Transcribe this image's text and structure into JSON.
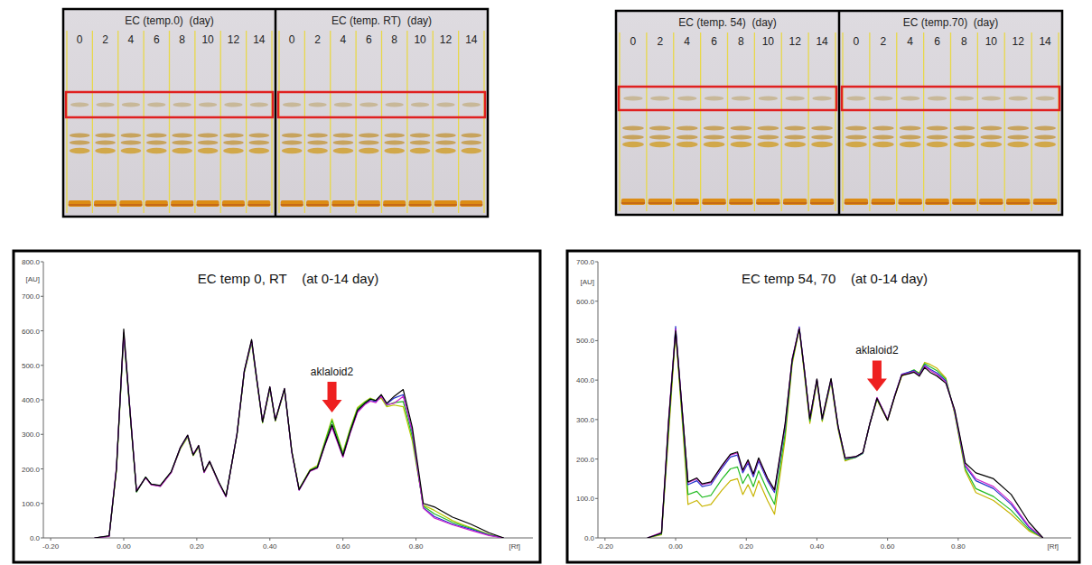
{
  "plates": [
    {
      "panels": [
        {
          "title": "EC (temp.0)  (day)",
          "lanes": [
            0,
            2,
            4,
            6,
            8,
            10,
            12,
            14
          ]
        },
        {
          "title": "EC (temp. RT)  (day)",
          "lanes": [
            0,
            2,
            4,
            6,
            8,
            10,
            12,
            14
          ]
        }
      ]
    },
    {
      "panels": [
        {
          "title": "EC (temp. 54)  (day)",
          "lanes": [
            0,
            2,
            4,
            6,
            8,
            10,
            12,
            14
          ]
        },
        {
          "title": "EC (temp.70)  (day)",
          "lanes": [
            0,
            2,
            4,
            6,
            8,
            10,
            12,
            14
          ]
        }
      ]
    }
  ],
  "chart_data": [
    {
      "type": "line",
      "title": "EC temp 0, RT    (at 0-14 day)",
      "x_label": "[Rf]",
      "y_label": "[AU]",
      "x": [
        -0.08,
        -0.04,
        -0.02,
        0.0,
        0.02,
        0.035,
        0.06,
        0.075,
        0.1,
        0.13,
        0.155,
        0.175,
        0.19,
        0.205,
        0.22,
        0.235,
        0.26,
        0.28,
        0.31,
        0.33,
        0.35,
        0.365,
        0.38,
        0.4,
        0.415,
        0.44,
        0.46,
        0.48,
        0.51,
        0.53,
        0.55,
        0.57,
        0.6,
        0.62,
        0.64,
        0.66,
        0.675,
        0.69,
        0.705,
        0.72,
        0.74,
        0.765,
        0.79,
        0.82,
        0.85,
        0.9,
        0.95,
        1.0,
        1.04
      ],
      "xlim": [
        -0.22,
        1.12
      ],
      "xticks": [
        {
          "value": -0.2,
          "label": "-0.20"
        },
        {
          "value": 0,
          "label": "0.00"
        },
        {
          "value": 0.2,
          "label": "0.20"
        },
        {
          "value": 0.4,
          "label": "0.40"
        },
        {
          "value": 0.6,
          "label": "0.60"
        },
        {
          "value": 0.8,
          "label": "0.80"
        }
      ],
      "ylim": [
        0,
        800
      ],
      "yticks": [
        {
          "value": 0,
          "label": "0.0"
        },
        {
          "value": 100,
          "label": "100.0"
        },
        {
          "value": 200,
          "label": "200.0"
        },
        {
          "value": 300,
          "label": "300.0"
        },
        {
          "value": 400,
          "label": "400.0"
        },
        {
          "value": 500,
          "label": "500.0"
        },
        {
          "value": 600,
          "label": "600.0"
        },
        {
          "value": 700,
          "label": "700.0"
        },
        {
          "value": 800,
          "label": "800.0"
        }
      ],
      "annotations": [
        {
          "text": "aklaloid2",
          "x": 0.57
        }
      ],
      "series": [
        {
          "color": "#b8c800",
          "values": [
            0,
            5,
            195,
            585,
            325,
            135,
            175,
            155,
            150,
            190,
            258,
            292,
            238,
            262,
            190,
            218,
            160,
            122,
            298,
            478,
            565,
            448,
            333,
            432,
            338,
            428,
            252,
            142,
            198,
            210,
            278,
            345,
            248,
            318,
            378,
            395,
            405,
            398,
            405,
            380,
            385,
            380,
            280,
            95,
            80,
            50,
            30,
            10,
            0
          ]
        },
        {
          "color": "#22bb22",
          "values": [
            0,
            5,
            200,
            588,
            328,
            133,
            176,
            156,
            151,
            191,
            260,
            294,
            240,
            264,
            191,
            220,
            161,
            121,
            300,
            480,
            568,
            450,
            334,
            434,
            340,
            430,
            250,
            141,
            196,
            207,
            274,
            340,
            244,
            314,
            374,
            393,
            403,
            398,
            410,
            384,
            392,
            395,
            292,
            92,
            70,
            45,
            28,
            9,
            0
          ]
        },
        {
          "color": "#2233cc",
          "values": [
            0,
            5,
            202,
            592,
            332,
            136,
            175,
            155,
            150,
            190,
            261,
            296,
            241,
            266,
            190,
            221,
            160,
            120,
            301,
            482,
            571,
            452,
            336,
            436,
            341,
            431,
            249,
            139,
            194,
            203,
            268,
            325,
            236,
            306,
            366,
            388,
            398,
            395,
            412,
            388,
            405,
            415,
            305,
            88,
            62,
            40,
            25,
            8,
            0
          ]
        },
        {
          "color": "#cc22cc",
          "values": [
            0,
            4,
            205,
            595,
            335,
            137,
            174,
            154,
            149,
            189,
            262,
            297,
            242,
            267,
            189,
            222,
            159,
            119,
            302,
            483,
            572,
            453,
            337,
            437,
            342,
            432,
            248,
            138,
            193,
            202,
            266,
            320,
            234,
            304,
            364,
            386,
            396,
            392,
            410,
            386,
            390,
            410,
            310,
            86,
            58,
            38,
            22,
            7,
            0
          ]
        },
        {
          "color": "#000000",
          "values": [
            0,
            6,
            198,
            605,
            330,
            134,
            176,
            156,
            152,
            192,
            262,
            298,
            240,
            268,
            192,
            222,
            162,
            121,
            300,
            484,
            575,
            455,
            336,
            438,
            341,
            433,
            251,
            140,
            195,
            204,
            268,
            328,
            238,
            308,
            370,
            390,
            402,
            398,
            415,
            390,
            410,
            430,
            320,
            100,
            90,
            60,
            40,
            15,
            0
          ]
        }
      ]
    },
    {
      "type": "line",
      "title": "EC temp 54, 70    (at 0-14 day)",
      "x_label": "[Rf]",
      "y_label": "[AU]",
      "x": [
        -0.08,
        -0.04,
        -0.02,
        0.0,
        0.02,
        0.035,
        0.06,
        0.075,
        0.1,
        0.13,
        0.155,
        0.175,
        0.19,
        0.205,
        0.22,
        0.235,
        0.26,
        0.28,
        0.31,
        0.33,
        0.35,
        0.365,
        0.38,
        0.4,
        0.415,
        0.44,
        0.46,
        0.48,
        0.51,
        0.53,
        0.55,
        0.57,
        0.6,
        0.62,
        0.64,
        0.66,
        0.675,
        0.69,
        0.705,
        0.72,
        0.74,
        0.765,
        0.79,
        0.82,
        0.85,
        0.9,
        0.95,
        1.0,
        1.04
      ],
      "xlim": [
        -0.22,
        1.12
      ],
      "xticks": [
        {
          "value": -0.2,
          "label": "-0.20"
        },
        {
          "value": 0,
          "label": "0.00"
        },
        {
          "value": 0.2,
          "label": "0.20"
        },
        {
          "value": 0.4,
          "label": "0.40"
        },
        {
          "value": 0.6,
          "label": "0.60"
        },
        {
          "value": 0.8,
          "label": "0.80"
        }
      ],
      "ylim": [
        0,
        700
      ],
      "yticks": [
        {
          "value": 0,
          "label": "0.0"
        },
        {
          "value": 100,
          "label": "100.0"
        },
        {
          "value": 200,
          "label": "200.0"
        },
        {
          "value": 300,
          "label": "300.0"
        },
        {
          "value": 400,
          "label": "400.0"
        },
        {
          "value": 500,
          "label": "500.0"
        },
        {
          "value": 600,
          "label": "600.0"
        },
        {
          "value": 700,
          "label": "700.0"
        }
      ],
      "annotations": [
        {
          "text": "aklaloid2",
          "x": 0.57
        }
      ],
      "series": [
        {
          "color": "#c8b400",
          "values": [
            0,
            8,
            260,
            520,
            280,
            85,
            95,
            80,
            85,
            120,
            145,
            150,
            110,
            135,
            105,
            145,
            95,
            60,
            250,
            440,
            530,
            410,
            290,
            395,
            295,
            395,
            275,
            195,
            205,
            215,
            290,
            350,
            298,
            358,
            410,
            418,
            425,
            418,
            445,
            440,
            430,
            405,
            315,
            170,
            115,
            95,
            60,
            18,
            0
          ]
        },
        {
          "color": "#22bb22",
          "values": [
            0,
            10,
            275,
            530,
            292,
            110,
            118,
            103,
            108,
            148,
            175,
            180,
            138,
            162,
            130,
            170,
            120,
            85,
            265,
            446,
            533,
            416,
            296,
            398,
            298,
            398,
            278,
            198,
            204,
            214,
            290,
            352,
            300,
            360,
            413,
            420,
            426,
            416,
            442,
            434,
            424,
            402,
            318,
            175,
            125,
            105,
            70,
            22,
            0
          ]
        },
        {
          "color": "#2233cc",
          "values": [
            0,
            12,
            290,
            536,
            305,
            135,
            145,
            130,
            135,
            175,
            205,
            210,
            165,
            190,
            155,
            195,
            145,
            115,
            282,
            451,
            535,
            421,
            301,
            401,
            301,
            401,
            281,
            201,
            205,
            215,
            290,
            355,
            300,
            360,
            415,
            420,
            424,
            414,
            438,
            428,
            418,
            398,
            320,
            182,
            145,
            125,
            85,
            27,
            0
          ]
        },
        {
          "color": "#cc22cc",
          "values": [
            0,
            14,
            300,
            530,
            310,
            140,
            150,
            135,
            140,
            180,
            210,
            215,
            170,
            195,
            160,
            200,
            150,
            120,
            288,
            455,
            532,
            423,
            303,
            402,
            302,
            402,
            282,
            202,
            206,
            216,
            290,
            356,
            300,
            360,
            414,
            418,
            422,
            412,
            435,
            425,
            414,
            395,
            322,
            185,
            150,
            130,
            90,
            30,
            0
          ]
        },
        {
          "color": "#000000",
          "values": [
            0,
            12,
            295,
            525,
            308,
            142,
            152,
            137,
            142,
            182,
            212,
            218,
            172,
            198,
            162,
            203,
            152,
            122,
            290,
            452,
            530,
            422,
            302,
            403,
            303,
            404,
            283,
            203,
            206,
            216,
            290,
            354,
            298,
            358,
            412,
            416,
            420,
            410,
            432,
            420,
            410,
            392,
            325,
            190,
            165,
            150,
            110,
            40,
            0
          ]
        }
      ]
    }
  ]
}
